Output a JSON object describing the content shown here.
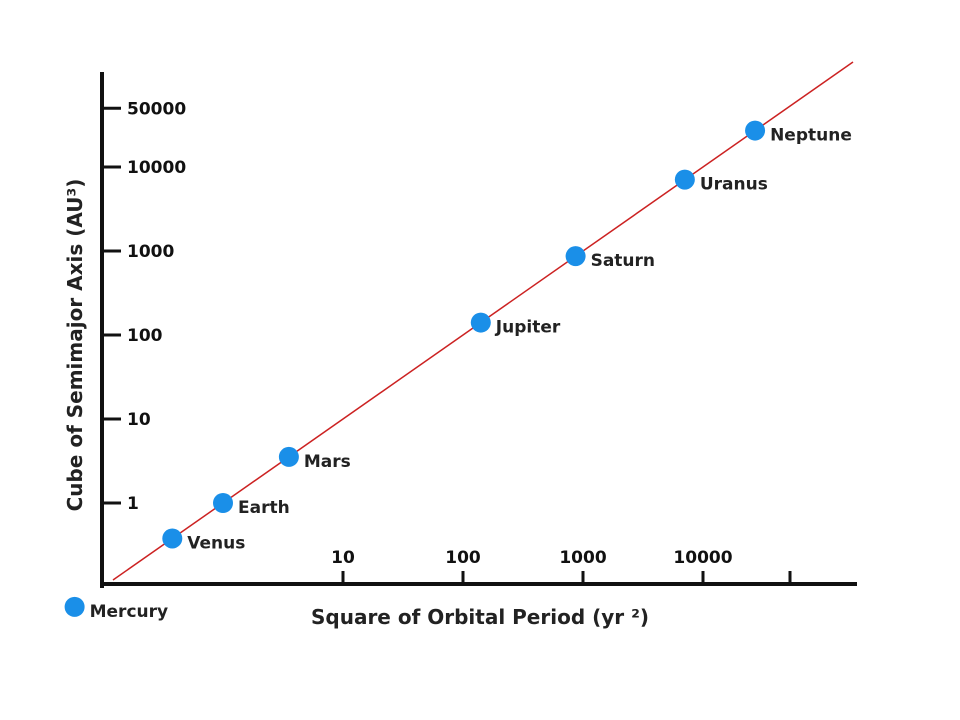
{
  "chart_data": {
    "type": "scatter",
    "xlabel": "Square of Orbital Period (yr ²)",
    "ylabel": "Cube of Semimajor Axis (AU³)",
    "x_scale": "log",
    "y_scale": "log",
    "x_ticks": [
      "10",
      "100",
      "1000",
      "10000"
    ],
    "y_ticks": [
      "1",
      "10",
      "100",
      "1000",
      "10000",
      "50000"
    ],
    "grid": false,
    "points": [
      {
        "label": "Mercury",
        "x": 0.058,
        "y": 0.058
      },
      {
        "label": "Venus",
        "x": 0.378,
        "y": 0.378
      },
      {
        "label": "Earth",
        "x": 1,
        "y": 1
      },
      {
        "label": "Mars",
        "x": 3.54,
        "y": 3.54
      },
      {
        "label": "Jupiter",
        "x": 140.7,
        "y": 140.6
      },
      {
        "label": "Saturn",
        "x": 867.7,
        "y": 868.0
      },
      {
        "label": "Uranus",
        "x": 7058,
        "y": 7078
      },
      {
        "label": "Neptune",
        "x": 27160,
        "y": 27150
      }
    ],
    "fit_line": {
      "slope": 1,
      "color": "#cc2222"
    },
    "point_color": "#1a8fe8"
  }
}
